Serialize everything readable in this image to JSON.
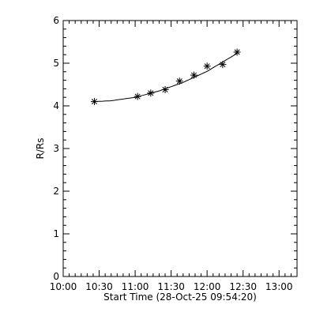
{
  "chart_data": {
    "type": "scatter",
    "xlabel": "Start Time (28-Oct-25 09:54:20)",
    "ylabel": "R/Rs",
    "x_ticks": [
      "10:00",
      "10:30",
      "11:00",
      "11:30",
      "12:00",
      "12:30",
      "13:00"
    ],
    "y_ticks": [
      "0",
      "1",
      "2",
      "3",
      "4",
      "5",
      "6"
    ],
    "xlim": [
      "10:00",
      "13:15"
    ],
    "ylim": [
      0,
      6
    ],
    "grid": false,
    "marker": "asterisk",
    "series": [
      {
        "x": [
          "10:26",
          "11:02",
          "11:13",
          "11:25",
          "11:37",
          "11:49",
          "12:00",
          "12:13",
          "12:25"
        ],
        "y": [
          4.1,
          4.22,
          4.3,
          4.38,
          4.58,
          4.72,
          4.93,
          4.97,
          5.26
        ]
      }
    ],
    "fit": {
      "type": "curve",
      "x": [
        "10:26",
        "10:40",
        "11:00",
        "11:20",
        "11:40",
        "12:00",
        "12:25"
      ],
      "y": [
        4.1,
        4.12,
        4.2,
        4.35,
        4.55,
        4.81,
        5.23
      ]
    }
  }
}
